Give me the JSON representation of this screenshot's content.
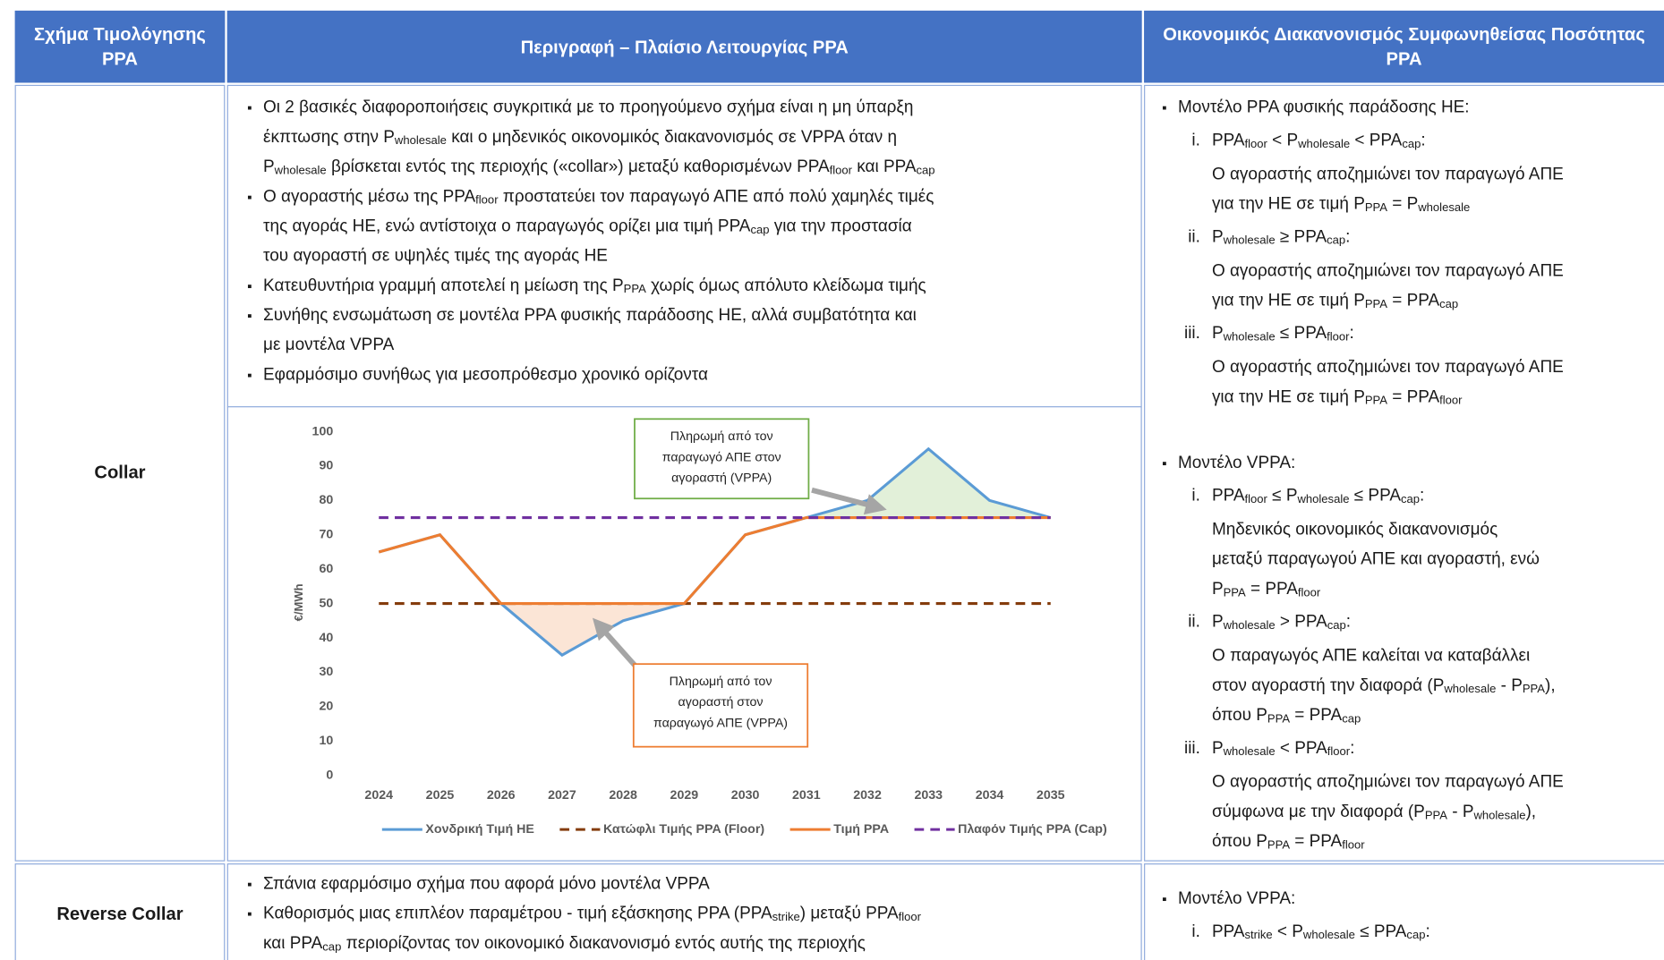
{
  "table": {
    "header": [
      "Σχήμα Τιμολόγησης PPA",
      "Περιγραφή – Πλαίσιο Λειτουργίας PPA",
      "Οικονομικός Διακανονισμός  Συμφωνηθείσας Ποσότητας PPA"
    ],
    "rows": [
      {
        "scheme": "Collar",
        "description": [
          [
            [
              "Οι 2 βασικές διαφοροποιήσεις συγκριτικά με το προηγούμενο σχήμα είναι η μη ύπαρξη"
            ],
            [
              "έκπτωσης στην P",
              {
                "sub": "wholesale"
              },
              " και ο μηδενικός οικονομικός διακανονισμός σε VPPA όταν η"
            ],
            [
              "P",
              {
                "sub": "wholesale"
              },
              " βρίσκεται εντός της περιοχής («collar») μεταξύ καθορισμένων PPA",
              {
                "sub": "floor"
              },
              " και PPA",
              {
                "sub": "cap"
              }
            ]
          ],
          [
            [
              "Ο αγοραστής μέσω της PPA",
              {
                "sub": "floor"
              },
              " προστατεύει τον παραγωγό ΑΠΕ από πολύ χαμηλές τιμές"
            ],
            [
              "της αγοράς ΗΕ, ενώ αντίστοιχα ο παραγωγός ορίζει μια τιμή PPA",
              {
                "sub": "cap"
              },
              " για την προστασία"
            ],
            [
              "του αγοραστή σε υψηλές τιμές της αγοράς ΗΕ"
            ]
          ],
          [
            [
              "Κατευθυντήρια γραμμή αποτελεί η μείωση της P",
              {
                "sub": "PPA"
              },
              " χωρίς όμως απόλυτο κλείδωμα τιμής"
            ]
          ],
          [
            [
              "Συνήθης ενσωμάτωση σε μοντέλα PPA φυσικής παράδοσης ΗΕ, αλλά συμβατότητα και"
            ],
            [
              "με μοντέλα VPPA"
            ]
          ],
          [
            [
              "Εφαρμόσιμο συνήθως για μεσοπρόθεσμο χρονικό ορίζοντα"
            ]
          ]
        ],
        "settlement": [
          {
            "heading": [
              "Μοντέλο PPA φυσικής παράδοσης ΗΕ:"
            ],
            "cases": [
              {
                "marker": "i.",
                "condition": [
                  "PPA",
                  {
                    "sub": "floor"
                  },
                  " < P",
                  {
                    "sub": "wholesale"
                  },
                  " < PPA",
                  {
                    "sub": "cap"
                  },
                  ":"
                ],
                "text": [
                  [
                    "Ο αγοραστής αποζημιώνει τον παραγωγό ΑΠΕ"
                  ],
                  [
                    "για την ΗΕ σε τιμή P",
                    {
                      "sub": "PPA"
                    },
                    " = P",
                    {
                      "sub": "wholesale"
                    }
                  ]
                ]
              },
              {
                "marker": "ii.",
                "condition": [
                  "P",
                  {
                    "sub": "wholesale"
                  },
                  " ≥ PPA",
                  {
                    "sub": "cap"
                  },
                  ":"
                ],
                "text": [
                  [
                    "Ο αγοραστής αποζημιώνει τον παραγωγό ΑΠΕ"
                  ],
                  [
                    "για την ΗΕ σε τιμή P",
                    {
                      "sub": "PPA"
                    },
                    " = PPA",
                    {
                      "sub": "cap"
                    }
                  ]
                ]
              },
              {
                "marker": "iii.",
                "condition": [
                  "P",
                  {
                    "sub": "wholesale"
                  },
                  " ≤ PPA",
                  {
                    "sub": "floor"
                  },
                  ":"
                ],
                "text": [
                  [
                    "Ο αγοραστής αποζημιώνει τον παραγωγό ΑΠΕ"
                  ],
                  [
                    "για την ΗΕ σε τιμή P",
                    {
                      "sub": "PPA"
                    },
                    " = PPA",
                    {
                      "sub": "floor"
                    }
                  ]
                ]
              }
            ]
          },
          {
            "heading": [
              "Μοντέλο VPPA:"
            ],
            "cases": [
              {
                "marker": "i.",
                "condition": [
                  "PPA",
                  {
                    "sub": "floor"
                  },
                  " ≤ P",
                  {
                    "sub": "wholesale"
                  },
                  " ≤ PPA",
                  {
                    "sub": "cap"
                  },
                  ":"
                ],
                "text": [
                  [
                    "Μηδενικός οικονομικός διακανονισμός"
                  ],
                  [
                    "μεταξύ παραγωγού ΑΠΕ και αγοραστή, ενώ"
                  ],
                  [
                    "P",
                    {
                      "sub": "PPA"
                    },
                    " = PPA",
                    {
                      "sub": "floor"
                    }
                  ]
                ]
              },
              {
                "marker": "ii.",
                "condition": [
                  "P",
                  {
                    "sub": "wholesale"
                  },
                  " > PPA",
                  {
                    "sub": "cap"
                  },
                  ":"
                ],
                "text": [
                  [
                    "Ο παραγωγός ΑΠΕ καλείται να καταβάλλει"
                  ],
                  [
                    "στον αγοραστή την διαφορά (P",
                    {
                      "sub": "wholesale"
                    },
                    " - P",
                    {
                      "sub": "PPA"
                    },
                    "),"
                  ],
                  [
                    "όπου P",
                    {
                      "sub": "PPA"
                    },
                    " = PPA",
                    {
                      "sub": "cap"
                    }
                  ]
                ]
              },
              {
                "marker": "iii.",
                "condition": [
                  "P",
                  {
                    "sub": "wholesale"
                  },
                  " < PPA",
                  {
                    "sub": "floor"
                  },
                  ":"
                ],
                "text": [
                  [
                    "Ο αγοραστής αποζημιώνει τον παραγωγό ΑΠΕ"
                  ],
                  [
                    "σύμφωνα με την διαφορά (P",
                    {
                      "sub": "PPA"
                    },
                    " - P",
                    {
                      "sub": "wholesale"
                    },
                    "),"
                  ],
                  [
                    "όπου P",
                    {
                      "sub": "PPA"
                    },
                    " = PPA",
                    {
                      "sub": "floor"
                    }
                  ]
                ]
              }
            ]
          }
        ]
      },
      {
        "scheme": "Reverse Collar",
        "description": [
          [
            [
              "Σπάνια εφαρμόσιμο σχήμα που αφορά μόνο μοντέλα VPPA"
            ]
          ],
          [
            [
              "Καθορισμός μιας επιπλέον παραμέτρου - τιμή εξάσκησης PPA (PPA",
              {
                "sub": "strike"
              },
              ") μεταξύ PPA",
              {
                "sub": "floor"
              }
            ],
            [
              "και PPA",
              {
                "sub": "cap"
              },
              " περιορίζοντας τον οικονομικό διακανονισμό εντός αυτής της περιοχής"
            ]
          ]
        ],
        "settlement": [
          {
            "heading": [
              "Μοντέλο VPPA:"
            ],
            "cases": [
              {
                "marker": "i.",
                "condition": [
                  "PPA",
                  {
                    "sub": "strike"
                  },
                  " < P",
                  {
                    "sub": "wholesale"
                  },
                  " ≤ PPA",
                  {
                    "sub": "cap"
                  },
                  ":"
                ],
                "text": []
              }
            ]
          }
        ]
      }
    ]
  },
  "chart_data": {
    "type": "line",
    "categories": [
      "2024",
      "2025",
      "2026",
      "2027",
      "2028",
      "2029",
      "2030",
      "2031",
      "2032",
      "2033",
      "2034",
      "2035"
    ],
    "ylabel": "€/MWh",
    "ylim": [
      0,
      100
    ],
    "yticks": [
      0,
      10,
      20,
      30,
      40,
      50,
      60,
      70,
      80,
      90,
      100
    ],
    "grid": false,
    "series": [
      {
        "name": "Χονδρική Τιμή ΗΕ",
        "color": "#5b9bd5",
        "dashed": false,
        "values": [
          65,
          70,
          50,
          35,
          45,
          50,
          70,
          75,
          80,
          95,
          80,
          75
        ]
      },
      {
        "name": "Κατώφλι Τιμής PPA (Floor)",
        "color": "#843c0c",
        "dashed": true,
        "values": [
          50,
          50,
          50,
          50,
          50,
          50,
          50,
          50,
          50,
          50,
          50,
          50
        ]
      },
      {
        "name": "Τιμή PPA",
        "color": "#ed7d31",
        "dashed": false,
        "values": [
          65,
          70,
          50,
          50,
          50,
          50,
          70,
          75,
          75,
          75,
          75,
          75
        ]
      },
      {
        "name": "Πλαφόν Τιμής PPA (Cap)",
        "color": "#7030a0",
        "dashed": true,
        "values": [
          75,
          75,
          75,
          75,
          75,
          75,
          75,
          75,
          75,
          75,
          75,
          75
        ]
      }
    ],
    "annotations": [
      {
        "lines": [
          "Πληρωμή από τον",
          "παραγωγό ΑΠΕ στον",
          "αγοραστή (VPPA)"
        ],
        "border": "#70ad47",
        "fill": "#e2f0d9"
      },
      {
        "lines": [
          "Πληρωμή από τον",
          "αγοραστή στον",
          "παραγωγό ΑΠΕ (VPPA)"
        ],
        "border": "#ed7d31",
        "fill": "#fbe5d6"
      }
    ]
  }
}
